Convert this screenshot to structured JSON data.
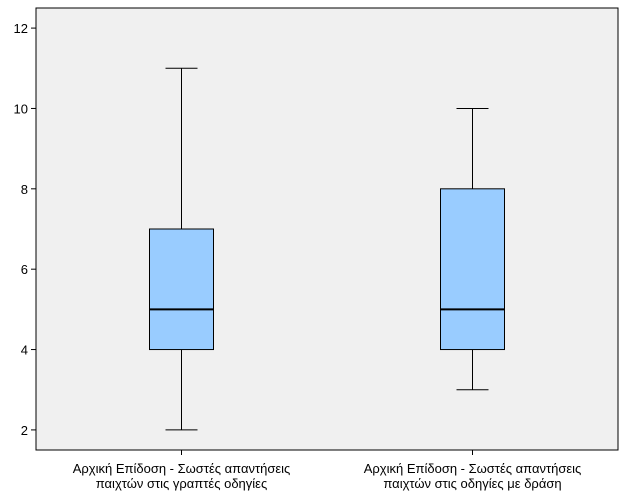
{
  "chart_data": {
    "type": "box",
    "title": "",
    "xlabel": "",
    "ylabel": "",
    "ylim": [
      1.5,
      12.5
    ],
    "yticks": [
      2,
      4,
      6,
      8,
      10,
      12
    ],
    "grid": false,
    "colors": {
      "plot_bg": "#f0f0f0",
      "box_fill": "#99ccff",
      "stroke": "#000000"
    },
    "categories": [
      [
        "Αρχική Επίδοση - Σωστές απαντήσεις",
        "παιχτών στις γραπτές οδηγίες"
      ],
      [
        "Αρχική Επίδοση - Σωστές απαντήσεις",
        "παιχτών στις οδηγίες με δράση"
      ]
    ],
    "boxes": [
      {
        "min": 2,
        "q1": 4,
        "median": 5,
        "q3": 7,
        "max": 11
      },
      {
        "min": 3,
        "q1": 4,
        "median": 5,
        "q3": 8,
        "max": 10
      }
    ]
  }
}
